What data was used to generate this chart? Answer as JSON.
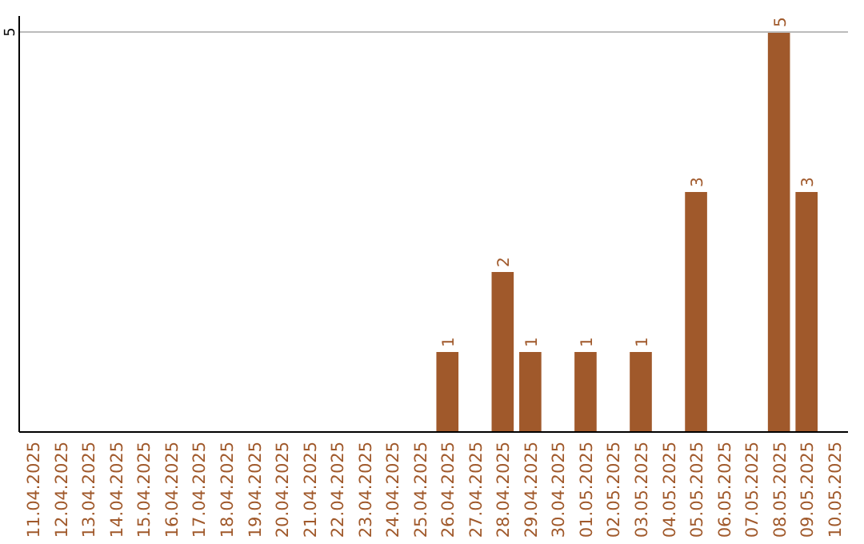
{
  "chart_data": {
    "type": "bar",
    "categories": [
      "11.04.2025",
      "12.04.2025",
      "13.04.2025",
      "14.04.2025",
      "15.04.2025",
      "16.04.2025",
      "17.04.2025",
      "18.04.2025",
      "19.04.2025",
      "20.04.2025",
      "21.04.2025",
      "22.04.2025",
      "23.04.2025",
      "24.04.2025",
      "25.04.2025",
      "26.04.2025",
      "27.04.2025",
      "28.04.2025",
      "29.04.2025",
      "30.04.2025",
      "01.05.2025",
      "02.05.2025",
      "03.05.2025",
      "04.05.2025",
      "05.05.2025",
      "06.05.2025",
      "07.05.2025",
      "08.05.2025",
      "09.05.2025",
      "10.05.2025"
    ],
    "values": [
      null,
      null,
      null,
      null,
      null,
      null,
      null,
      null,
      null,
      null,
      null,
      null,
      null,
      null,
      null,
      1,
      null,
      2,
      1,
      null,
      1,
      null,
      1,
      null,
      3,
      null,
      null,
      5,
      3,
      null
    ],
    "color": "#a0592b",
    "ylim": [
      0,
      5.2
    ],
    "yticks": [
      5
    ],
    "grid": "y",
    "data_labels": true
  }
}
